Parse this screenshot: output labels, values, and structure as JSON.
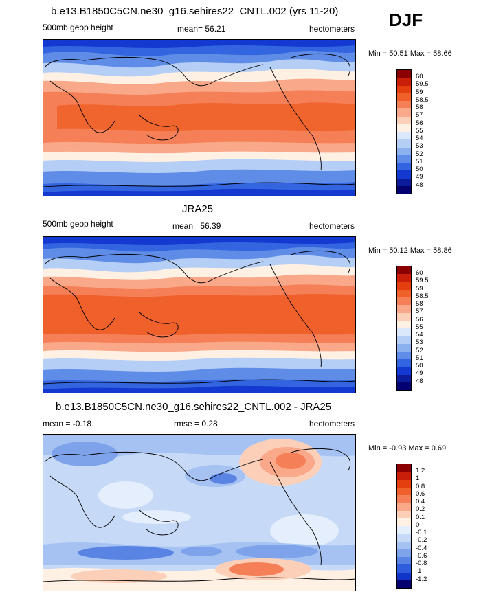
{
  "season": "DJF",
  "panels": [
    {
      "title": "b.e13.B1850C5CN.ne30_g16.sehires22_CNTL.002 (yrs 11-20)",
      "left": "500mb geop height",
      "center": "mean=  56.21",
      "right": "hectometers",
      "minmax": "Min =  50.51 Max =  58.66",
      "kind": "field",
      "colorbar_labels": [
        "60",
        "59.5",
        "59",
        "58.5",
        "58",
        "57",
        "56",
        "55",
        "54",
        "53",
        "52",
        "51",
        "50",
        "49",
        "48"
      ]
    },
    {
      "title": "JRA25",
      "left": "500mb geop height",
      "center": "mean=  56.39",
      "right": "hectometers",
      "minmax": "Min =  50.12 Max =  58.86",
      "kind": "field",
      "colorbar_labels": [
        "60",
        "59.5",
        "59",
        "58.5",
        "58",
        "57",
        "56",
        "55",
        "54",
        "53",
        "52",
        "51",
        "50",
        "49",
        "48"
      ]
    },
    {
      "title": "b.e13.B1850C5CN.ne30_g16.sehires22_CNTL.002 - JRA25",
      "left": "mean =  -0.18",
      "center": "rmse =   0.28",
      "right": "hectometers",
      "minmax": "Min =  -0.93 Max =   0.69",
      "kind": "diff",
      "colorbar_labels": [
        "1.2",
        "1",
        "0.8",
        "0.6",
        "0.4",
        "0.2",
        "0.1",
        "0",
        "-0.1",
        "-0.2",
        "-0.4",
        "-0.6",
        "-0.8",
        "-1",
        "-1.2"
      ]
    }
  ],
  "colors": {
    "field": [
      "#8b0000",
      "#c81e0a",
      "#e4400f",
      "#f0602a",
      "#f58058",
      "#f9a889",
      "#fcd0b8",
      "#fff0e4",
      "#dbe7fb",
      "#b4cef5",
      "#8cb1ef",
      "#5f8ce6",
      "#3465e0",
      "#1439d0",
      "#0c1c9a",
      "#050070"
    ],
    "diff": [
      "#8b0000",
      "#c81e0a",
      "#e4400f",
      "#f0602a",
      "#f58058",
      "#f9a889",
      "#fcd0b8",
      "#fff0e4",
      "#e4eefc",
      "#c6daf7",
      "#a5c2f2",
      "#7ea3ea",
      "#5a84e4",
      "#2f5cdc",
      "#1334c8",
      "#050070"
    ]
  }
}
